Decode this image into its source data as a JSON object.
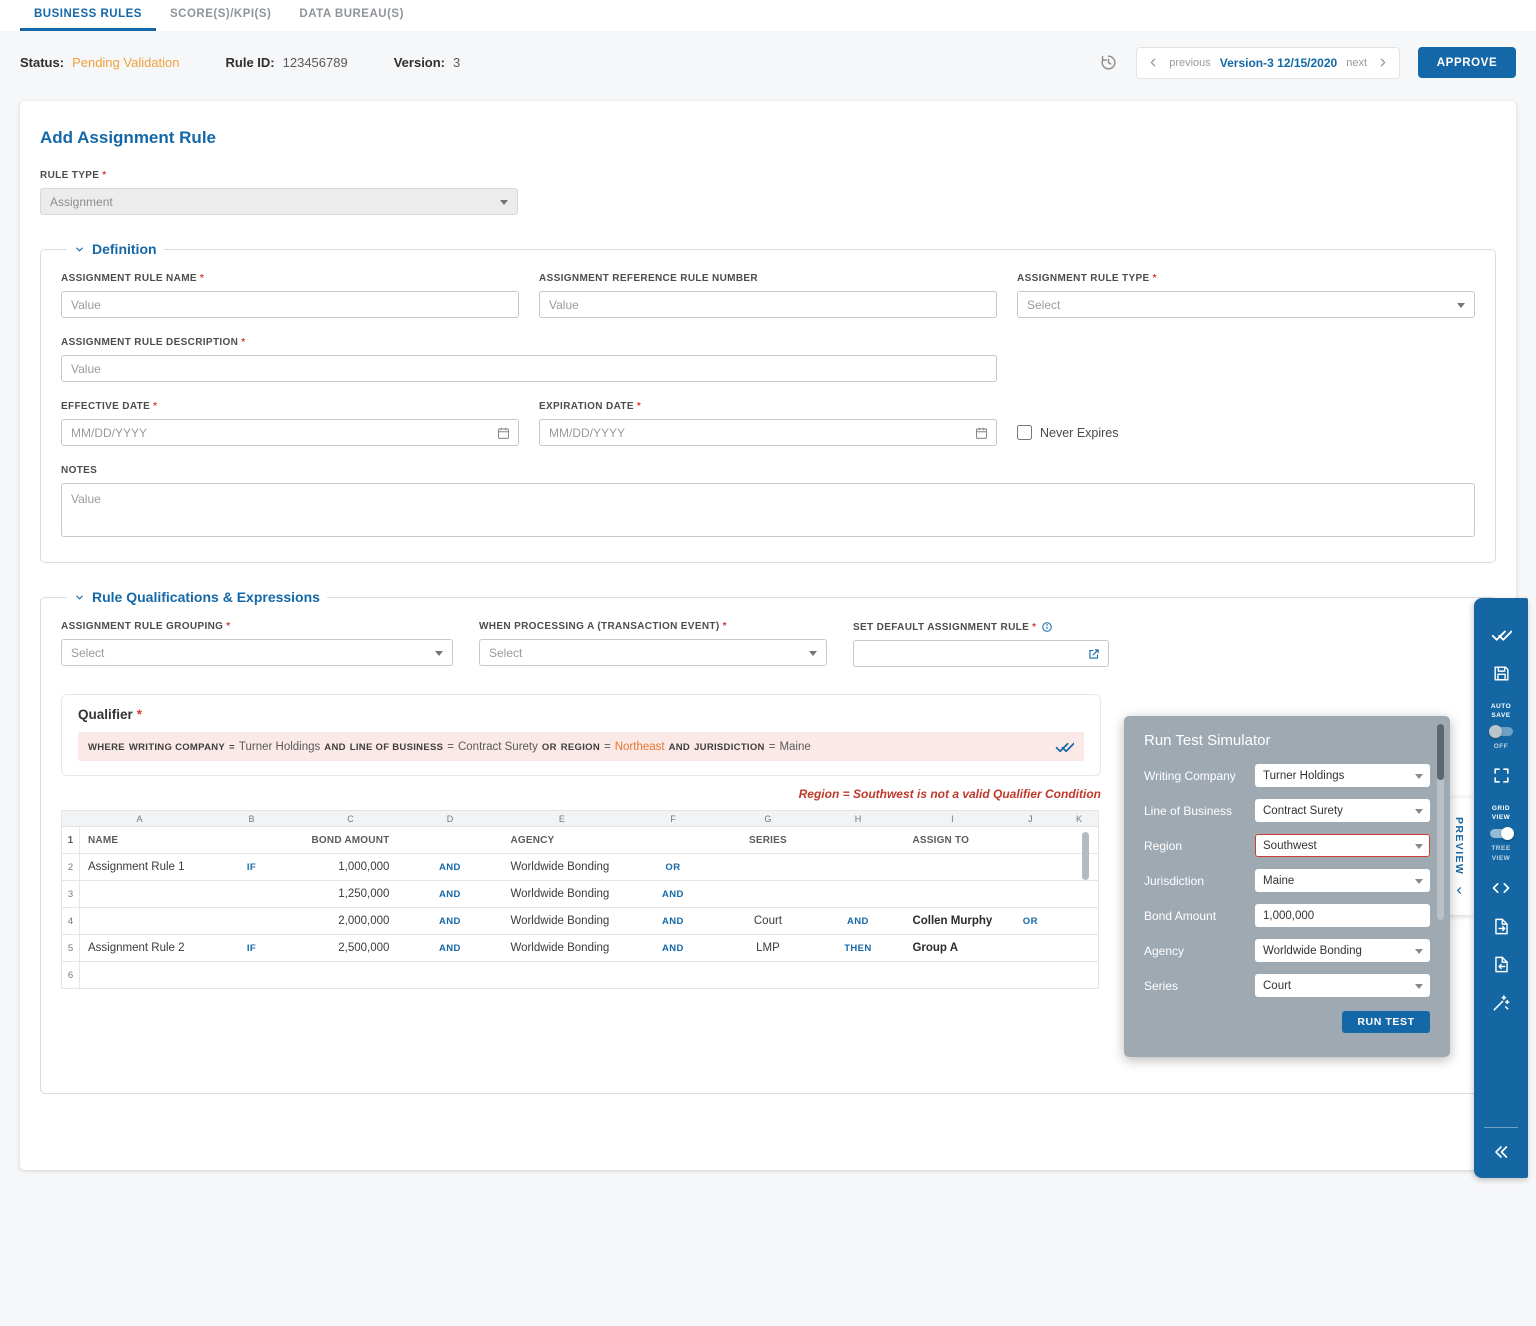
{
  "ui": {
    "required_marker": "*"
  },
  "colors": {
    "accent": "#1568A7",
    "status_warning": "#F0A13C",
    "error": "#C0392B",
    "simulator_panel": "#9CA6B0"
  },
  "tabs": [
    {
      "label": "BUSINESS RULES",
      "active": true
    },
    {
      "label": "SCORE(S)/KPI(S)",
      "active": false
    },
    {
      "label": "DATA BUREAU(S)",
      "active": false
    }
  ],
  "status_bar": {
    "status_label": "Status:",
    "status_value": "Pending Validation",
    "rule_id_label": "Rule ID:",
    "rule_id_value": "123456789",
    "version_label": "Version:",
    "version_value": "3",
    "previous_label": "previous",
    "current_version_label": "Version-3 12/15/2020",
    "next_label": "next",
    "approve_label": "APPROVE"
  },
  "page": {
    "title": "Add Assignment Rule",
    "rule_type_label": "RULE TYPE",
    "rule_type_value": "Assignment"
  },
  "definition": {
    "section_title": "Definition",
    "rule_name_label": "ASSIGNMENT RULE NAME",
    "rule_name_placeholder": "Value",
    "reference_number_label": "ASSIGNMENT REFERENCE RULE NUMBER",
    "reference_number_placeholder": "Value",
    "rule_type_label": "ASSIGNMENT RULE TYPE",
    "rule_type_placeholder": "Select",
    "description_label": "ASSIGNMENT RULE DESCRIPTION",
    "description_placeholder": "Value",
    "effective_date_label": "EFFECTIVE DATE",
    "effective_date_placeholder": "MM/DD/YYYY",
    "expiration_date_label": "EXPIRATION DATE",
    "expiration_date_placeholder": "MM/DD/YYYY",
    "never_expires_label": "Never Expires",
    "notes_label": "NOTES",
    "notes_placeholder": "Value"
  },
  "qualifications": {
    "section_title": "Rule Qualifications & Expressions",
    "grouping_label": "ASSIGNMENT RULE GROUPING",
    "grouping_placeholder": "Select",
    "transaction_event_label": "WHEN PROCESSING A (TRANSACTION EVENT)",
    "transaction_event_placeholder": "Select",
    "default_rule_label": "SET DEFAULT ASSIGNMENT RULE",
    "qualifier_title": "Qualifier",
    "qualifier_tokens": [
      {
        "text": "WHERE",
        "style": "kw"
      },
      {
        "text": "WRITING COMPANY",
        "style": "kw"
      },
      {
        "text": "=",
        "style": "kw"
      },
      {
        "text": "Turner Holdings",
        "style": "val"
      },
      {
        "text": "AND",
        "style": "kw"
      },
      {
        "text": "LINE OF BUSINESS",
        "style": "kw"
      },
      {
        "text": "=",
        "style": "val"
      },
      {
        "text": "Contract Surety",
        "style": "val"
      },
      {
        "text": "OR",
        "style": "kw"
      },
      {
        "text": "REGION",
        "style": "kw"
      },
      {
        "text": "=",
        "style": "val"
      },
      {
        "text": "Northeast",
        "style": "warn"
      },
      {
        "text": "AND",
        "style": "kw"
      },
      {
        "text": "JURISDICTION",
        "style": "kw"
      },
      {
        "text": "=",
        "style": "val"
      },
      {
        "text": "Maine",
        "style": "val"
      }
    ],
    "validation_error": "Region = Southwest is not a valid Qualifier Condition"
  },
  "grid": {
    "column_letters": [
      "A",
      "B",
      "C",
      "D",
      "E",
      "F",
      "G",
      "H",
      "I",
      "J",
      "K"
    ],
    "rows": [
      {
        "num": "1",
        "header": true,
        "cells": {
          "A": "NAME",
          "C": "BOND AMOUNT",
          "E": "AGENCY",
          "G": "SERIES",
          "I": "ASSIGN TO"
        }
      },
      {
        "num": "2",
        "cells": {
          "A": "Assignment Rule 1",
          "B": "IF",
          "C": "1,000,000",
          "D": "AND",
          "E": "Worldwide Bonding",
          "F": "OR"
        }
      },
      {
        "num": "3",
        "cells": {
          "C": "1,250,000",
          "D": "AND",
          "E": "Worldwide Bonding",
          "F": "AND"
        }
      },
      {
        "num": "4",
        "cells": {
          "C": "2,000,000",
          "D": "AND",
          "E": "Worldwide Bonding",
          "F": "AND",
          "G": "Court",
          "H": "AND",
          "I": "Collen Murphy",
          "J": "OR"
        }
      },
      {
        "num": "5",
        "cells": {
          "A": "Assignment Rule 2",
          "B": "IF",
          "C": "2,500,000",
          "D": "AND",
          "E": "Worldwide Bonding",
          "F": "AND",
          "G": "LMP",
          "H": "THEN",
          "I": "Group A"
        }
      },
      {
        "num": "6",
        "cells": {}
      }
    ]
  },
  "simulator": {
    "title": "Run Test Simulator",
    "fields": [
      {
        "label": "Writing Company",
        "value": "Turner Holdings",
        "type": "select"
      },
      {
        "label": "Line of Business",
        "value": "Contract Surety",
        "type": "select"
      },
      {
        "label": "Region",
        "value": "Southwest",
        "type": "select",
        "invalid": true
      },
      {
        "label": "Jurisdiction",
        "value": "Maine",
        "type": "select"
      },
      {
        "label": "Bond Amount",
        "value": "1,000,000",
        "type": "input"
      },
      {
        "label": "Agency",
        "value": "Worldwide Bonding",
        "type": "select"
      },
      {
        "label": "Series",
        "value": "Court",
        "type": "select"
      }
    ],
    "run_test_label": "RUN TEST"
  },
  "toolbar": {
    "auto_save_label": "AUTO SAVE",
    "auto_save_state": "OFF",
    "grid_view_label": "GRID VIEW",
    "tree_view_label": "TREE VIEW",
    "preview_label": "PREVIEW"
  }
}
